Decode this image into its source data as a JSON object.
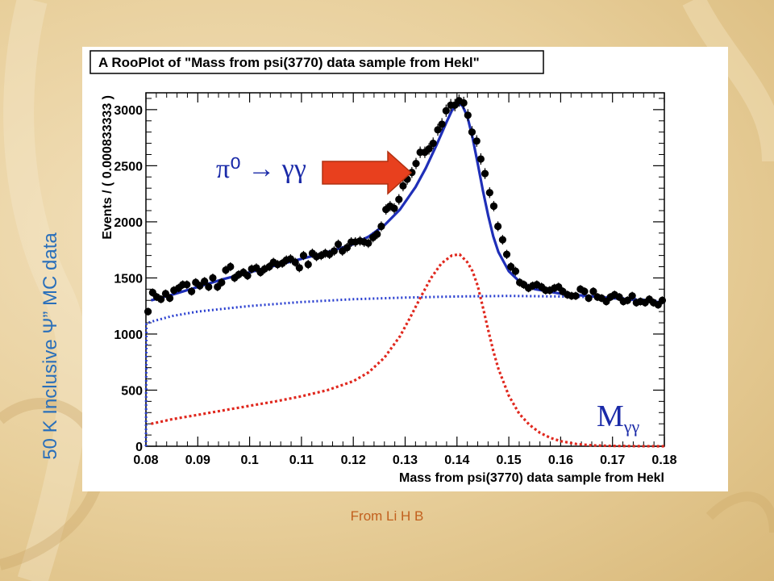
{
  "slide": {
    "side_label": "50 K Inclusive Ψ” MC data",
    "credit": "From Li H B"
  },
  "chart_data": {
    "type": "scatter",
    "title": "A RooPlot of \"Mass from psi(3770) data sample from Hekl\"",
    "xlabel": "Mass from psi(3770) data sample from Hekl",
    "ylabel": "Events / ( 0.000833333 )",
    "xlim": [
      0.08,
      0.18
    ],
    "ylim": [
      0,
      3150
    ],
    "xticks": [
      0.08,
      0.09,
      0.1,
      0.11,
      0.12,
      0.13,
      0.14,
      0.15,
      0.16,
      0.17,
      0.18
    ],
    "xtick_labels": [
      "0.08",
      "0.09",
      "0.1",
      "0.11",
      "0.12",
      "0.13",
      "0.14",
      "0.15",
      "0.16",
      "0.17",
      "0.18"
    ],
    "yticks": [
      0,
      500,
      1000,
      1500,
      2000,
      2500,
      3000
    ],
    "ytick_labels": [
      "0",
      "500",
      "1000",
      "1500",
      "2000",
      "2500",
      "3000"
    ],
    "annotations": {
      "signal_label": "π⁰ → γγ",
      "mass_label": "M",
      "mass_subscript": "γγ"
    },
    "colors": {
      "data": "#000000",
      "total_fit": "#1f2fb8",
      "background": "#2a3fd0",
      "signal": "#e0281e",
      "arrow": "#e8401e"
    },
    "series": [
      {
        "type": "scatter",
        "x": [
          0.0804,
          0.0813,
          0.0821,
          0.0829,
          0.0838,
          0.0846,
          0.0854,
          0.0863,
          0.0871,
          0.0879,
          0.0888,
          0.0896,
          0.0904,
          0.0913,
          0.0921,
          0.0929,
          0.0938,
          0.0946,
          0.0954,
          0.0963,
          0.0971,
          0.0979,
          0.0988,
          0.0996,
          0.1004,
          0.1013,
          0.1021,
          0.1029,
          0.1038,
          0.1046,
          0.1054,
          0.1063,
          0.1071,
          0.1079,
          0.1088,
          0.1096,
          0.1104,
          0.1113,
          0.1121,
          0.1129,
          0.1138,
          0.1146,
          0.1154,
          0.1163,
          0.1171,
          0.1179,
          0.1188,
          0.1196,
          0.1204,
          0.1213,
          0.1221,
          0.1229,
          0.1238,
          0.1246,
          0.1254,
          0.1263,
          0.1271,
          0.1279,
          0.1288,
          0.1296,
          0.1304,
          0.1313,
          0.1321,
          0.1329,
          0.1338,
          0.1346,
          0.1354,
          0.1363,
          0.1371,
          0.1379,
          0.1388,
          0.1396,
          0.1404,
          0.1413,
          0.1421,
          0.1429,
          0.1438,
          0.1446,
          0.1454,
          0.1463,
          0.1471,
          0.1479,
          0.1488,
          0.1496,
          0.1504,
          0.1513,
          0.1521,
          0.1529,
          0.1538,
          0.1546,
          0.1554,
          0.1563,
          0.1571,
          0.1579,
          0.1588,
          0.1596,
          0.1604,
          0.1613,
          0.1621,
          0.1629,
          0.1638,
          0.1646,
          0.1654,
          0.1663,
          0.1671,
          0.1679,
          0.1688,
          0.1696,
          0.1704,
          0.1713,
          0.1721,
          0.1729,
          0.1738,
          0.1746,
          0.1754,
          0.1763,
          0.1771,
          0.1779,
          0.1788,
          0.1796
        ],
        "values": [
          1200,
          1370,
          1330,
          1310,
          1360,
          1320,
          1390,
          1410,
          1440,
          1440,
          1380,
          1460,
          1430,
          1470,
          1420,
          1500,
          1420,
          1460,
          1570,
          1600,
          1500,
          1530,
          1550,
          1520,
          1580,
          1590,
          1550,
          1580,
          1600,
          1640,
          1620,
          1630,
          1660,
          1670,
          1640,
          1590,
          1700,
          1620,
          1720,
          1690,
          1700,
          1720,
          1710,
          1740,
          1800,
          1740,
          1770,
          1820,
          1820,
          1830,
          1820,
          1810,
          1860,
          1890,
          1960,
          2110,
          2140,
          2120,
          2200,
          2320,
          2380,
          2440,
          2520,
          2620,
          2620,
          2650,
          2700,
          2820,
          2870,
          2990,
          3040,
          3040,
          3080,
          3060,
          2950,
          2800,
          2720,
          2560,
          2430,
          2260,
          2140,
          1960,
          1840,
          1710,
          1600,
          1560,
          1460,
          1440,
          1410,
          1430,
          1440,
          1420,
          1390,
          1390,
          1410,
          1420,
          1380,
          1350,
          1340,
          1340,
          1400,
          1380,
          1320,
          1380,
          1330,
          1320,
          1290,
          1330,
          1350,
          1330,
          1290,
          1300,
          1340,
          1280,
          1290,
          1280,
          1310,
          1280,
          1260,
          1300
        ],
        "errors": [
          35,
          37,
          36,
          36,
          37,
          36,
          37,
          38,
          38,
          38,
          37,
          38,
          38,
          38,
          38,
          39,
          38,
          38,
          40,
          40,
          39,
          39,
          39,
          39,
          40,
          40,
          39,
          40,
          40,
          40,
          40,
          40,
          41,
          41,
          40,
          40,
          41,
          40,
          41,
          41,
          41,
          41,
          41,
          42,
          42,
          42,
          42,
          43,
          43,
          43,
          43,
          43,
          43,
          43,
          44,
          46,
          46,
          46,
          47,
          48,
          49,
          49,
          50,
          51,
          51,
          51,
          52,
          53,
          54,
          55,
          55,
          55,
          55,
          55,
          54,
          53,
          52,
          51,
          49,
          48,
          46,
          44,
          43,
          41,
          40,
          40,
          38,
          38,
          38,
          38,
          38,
          38,
          37,
          37,
          38,
          38,
          37,
          37,
          37,
          37,
          37,
          37,
          36,
          37,
          36,
          36,
          36,
          36,
          37,
          36,
          36,
          36,
          37,
          36,
          36,
          36,
          36,
          36,
          35,
          36
        ]
      },
      {
        "name": "",
        "type": "line",
        "style": "solid",
        "x": [
          0.081,
          0.085,
          0.09,
          0.095,
          0.1,
          0.105,
          0.11,
          0.115,
          0.12,
          0.123,
          0.126,
          0.129,
          0.132,
          0.134,
          0.136,
          0.138,
          0.139,
          0.14,
          0.141,
          0.142,
          0.143,
          0.144,
          0.145,
          0.146,
          0.147,
          0.148,
          0.15,
          0.152,
          0.155,
          0.16,
          0.165,
          0.17,
          0.175,
          0.18
        ],
        "values": [
          1300,
          1350,
          1420,
          1490,
          1550,
          1610,
          1670,
          1730,
          1800,
          1870,
          1970,
          2110,
          2310,
          2480,
          2680,
          2890,
          2990,
          3050,
          3040,
          2940,
          2750,
          2520,
          2280,
          2060,
          1870,
          1730,
          1560,
          1470,
          1400,
          1360,
          1340,
          1320,
          1300,
          1280
        ]
      },
      {
        "name": "",
        "type": "line",
        "style": "dotted",
        "x": [
          0.08,
          0.0801,
          0.0805,
          0.081,
          0.085,
          0.09,
          0.1,
          0.11,
          0.12,
          0.13,
          0.14,
          0.15,
          0.16,
          0.17,
          0.175,
          0.18
        ],
        "values": [
          0,
          1090,
          1100,
          1110,
          1160,
          1200,
          1250,
          1285,
          1310,
          1325,
          1335,
          1340,
          1335,
          1325,
          1310,
          1290
        ]
      },
      {
        "name": "",
        "type": "line",
        "style": "dashed",
        "x": [
          0.081,
          0.085,
          0.09,
          0.095,
          0.1,
          0.105,
          0.11,
          0.115,
          0.12,
          0.123,
          0.126,
          0.129,
          0.131,
          0.133,
          0.135,
          0.137,
          0.139,
          0.1405,
          0.142,
          0.143,
          0.144,
          0.145,
          0.146,
          0.147,
          0.148,
          0.15,
          0.152,
          0.154,
          0.156,
          0.158,
          0.16,
          0.163,
          0.166,
          0.17,
          0.175,
          0.18
        ],
        "values": [
          200,
          240,
          280,
          320,
          360,
          400,
          445,
          500,
          580,
          660,
          790,
          980,
          1150,
          1330,
          1500,
          1630,
          1700,
          1710,
          1640,
          1560,
          1430,
          1240,
          1040,
          850,
          690,
          450,
          290,
          190,
          120,
          75,
          45,
          20,
          8,
          3,
          1,
          0
        ]
      }
    ]
  }
}
